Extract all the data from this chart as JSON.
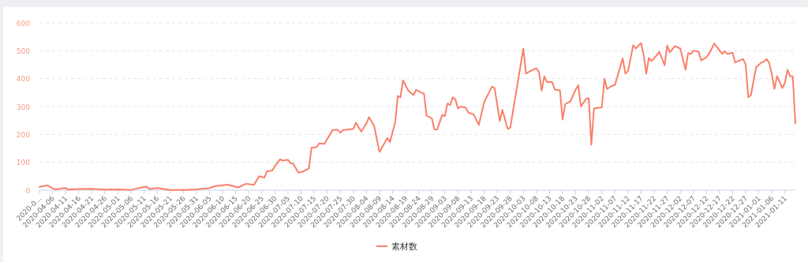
{
  "chart_data": {
    "type": "line",
    "legend": "bottom",
    "grid": "y",
    "xlim": [
      "2020-04-01",
      "2021-01-15"
    ],
    "ylim": [
      0,
      600
    ],
    "yticks": [
      0,
      100,
      200,
      300,
      400,
      500,
      600
    ],
    "xticks": [
      {
        "value": "2020-04-01",
        "label": "2020-0..."
      },
      "2020-04-06",
      "2020-04-11",
      "2020-04-16",
      "2020-04-21",
      "2020-04-26",
      "2020-05-01",
      "2020-05-06",
      "2020-05-11",
      "2020-05-16",
      "2020-05-21",
      "2020-05-26",
      "2020-05-31",
      "2020-06-05",
      "2020-06-10",
      "2020-06-15",
      "2020-06-20",
      "2020-06-25",
      "2020-06-30",
      "2020-07-05",
      "2020-07-10",
      "2020-07-15",
      "2020-07-20",
      "2020-07-25",
      "2020-07-30",
      "2020-08-04",
      "2020-08-09",
      "2020-08-14",
      "2020-08-19",
      "2020-08-24",
      "2020-08-29",
      "2020-09-03",
      "2020-09-08",
      "2020-09-13",
      "2020-09-18",
      "2020-09-23",
      "2020-09-28",
      "2020-10-03",
      "2020-10-08",
      "2020-10-13",
      "2020-10-18",
      "2020-10-23",
      "2020-10-28",
      "2020-11-02",
      "2020-11-07",
      "2020-11-12",
      "2020-11-17",
      "2020-11-22",
      "2020-11-27",
      "2020-12-02",
      "2020-12-07",
      "2020-12-12",
      "2020-12-17",
      "2020-12-22",
      "2020-12-27",
      "2021-01-01",
      "2021-01-06",
      "2021-01-11"
    ],
    "series": [
      {
        "name": "素材数",
        "color": "#fa7f6a",
        "x": [
          "2020-04-01",
          "2020-04-04",
          "2020-04-06",
          "2020-04-07",
          "2020-04-11",
          "2020-04-12",
          "2020-04-16",
          "2020-04-21",
          "2020-04-26",
          "2020-05-01",
          "2020-05-06",
          "2020-05-10",
          "2020-05-12",
          "2020-05-13",
          "2020-05-16",
          "2020-05-21",
          "2020-05-26",
          "2020-05-31",
          "2020-06-03",
          "2020-06-05",
          "2020-06-07",
          "2020-06-12",
          "2020-06-16",
          "2020-06-19",
          "2020-06-22",
          "2020-06-24",
          "2020-06-26",
          "2020-06-27",
          "2020-06-29",
          "2020-06-30",
          "2020-07-02",
          "2020-07-03",
          "2020-07-05",
          "2020-07-06",
          "2020-07-07",
          "2020-07-09",
          "2020-07-11",
          "2020-07-13",
          "2020-07-14",
          "2020-07-16",
          "2020-07-17",
          "2020-07-19",
          "2020-07-22",
          "2020-07-24",
          "2020-07-25",
          "2020-07-26",
          "2020-07-30",
          "2020-07-31",
          "2020-08-02",
          "2020-08-04",
          "2020-08-05",
          "2020-08-07",
          "2020-08-09",
          "2020-08-12",
          "2020-08-13",
          "2020-08-15",
          "2020-08-16",
          "2020-08-17",
          "2020-08-18",
          "2020-08-20",
          "2020-08-22",
          "2020-08-23",
          "2020-08-25",
          "2020-08-26",
          "2020-08-27",
          "2020-08-29",
          "2020-08-30",
          "2020-08-31",
          "2020-09-02",
          "2020-09-03",
          "2020-09-04",
          "2020-09-05",
          "2020-09-06",
          "2020-09-07",
          "2020-09-08",
          "2020-09-09",
          "2020-09-11",
          "2020-09-12",
          "2020-09-14",
          "2020-09-16",
          "2020-09-18",
          "2020-09-21",
          "2020-09-22",
          "2020-09-24",
          "2020-09-25",
          "2020-09-27",
          "2020-09-28",
          "2020-10-03",
          "2020-10-04",
          "2020-10-06",
          "2020-10-08",
          "2020-10-09",
          "2020-10-10",
          "2020-10-11",
          "2020-10-12",
          "2020-10-14",
          "2020-10-15",
          "2020-10-17",
          "2020-10-18",
          "2020-10-19",
          "2020-10-21",
          "2020-10-23",
          "2020-10-24",
          "2020-10-25",
          "2020-10-27",
          "2020-10-28",
          "2020-10-29",
          "2020-10-30",
          "2020-11-02",
          "2020-11-03",
          "2020-11-04",
          "2020-11-06",
          "2020-11-07",
          "2020-11-10",
          "2020-11-11",
          "2020-11-12",
          "2020-11-14",
          "2020-11-15",
          "2020-11-17",
          "2020-11-18",
          "2020-11-19",
          "2020-11-20",
          "2020-11-21",
          "2020-11-22",
          "2020-11-24",
          "2020-11-26",
          "2020-11-27",
          "2020-11-28",
          "2020-11-30",
          "2020-12-02",
          "2020-12-04",
          "2020-12-05",
          "2020-12-06",
          "2020-12-07",
          "2020-12-09",
          "2020-12-10",
          "2020-12-12",
          "2020-12-13",
          "2020-12-15",
          "2020-12-18",
          "2020-12-19",
          "2020-12-20",
          "2020-12-22",
          "2020-12-23",
          "2020-12-26",
          "2020-12-27",
          "2020-12-28",
          "2020-12-29",
          "2020-12-31",
          "2021-01-02",
          "2021-01-03",
          "2021-01-04",
          "2021-01-05",
          "2021-01-06",
          "2021-01-07",
          "2021-01-08",
          "2021-01-10",
          "2021-01-11",
          "2021-01-12",
          "2021-01-13",
          "2021-01-14",
          "2021-01-15"
        ],
        "values": [
          12,
          17,
          7,
          3,
          8,
          2,
          4,
          5,
          2,
          3,
          1,
          10,
          13,
          4,
          8,
          1,
          1,
          3,
          6,
          7,
          14,
          20,
          10,
          23,
          19,
          50,
          45,
          68,
          70,
          86,
          111,
          106,
          109,
          97,
          95,
          63,
          68,
          78,
          152,
          155,
          168,
          166,
          215,
          217,
          206,
          215,
          220,
          242,
          210,
          239,
          262,
          229,
          137,
          187,
          173,
          243,
          338,
          333,
          394,
          357,
          341,
          360,
          350,
          346,
          267,
          258,
          218,
          217,
          270,
          266,
          311,
          305,
          333,
          326,
          293,
          300,
          296,
          278,
          272,
          234,
          316,
          371,
          366,
          248,
          288,
          220,
          224,
          508,
          418,
          429,
          437,
          423,
          357,
          408,
          388,
          388,
          361,
          358,
          253,
          309,
          319,
          361,
          376,
          300,
          328,
          330,
          163,
          293,
          297,
          399,
          363,
          375,
          377,
          473,
          418,
          427,
          520,
          508,
          528,
          484,
          418,
          475,
          463,
          473,
          496,
          448,
          519,
          495,
          517,
          508,
          432,
          492,
          488,
          500,
          497,
          465,
          477,
          489,
          526,
          489,
          498,
          489,
          493,
          458,
          470,
          451,
          333,
          341,
          441,
          458,
          461,
          470,
          456,
          416,
          363,
          409,
          366,
          385,
          432,
          408,
          408,
          239
        ]
      }
    ]
  }
}
